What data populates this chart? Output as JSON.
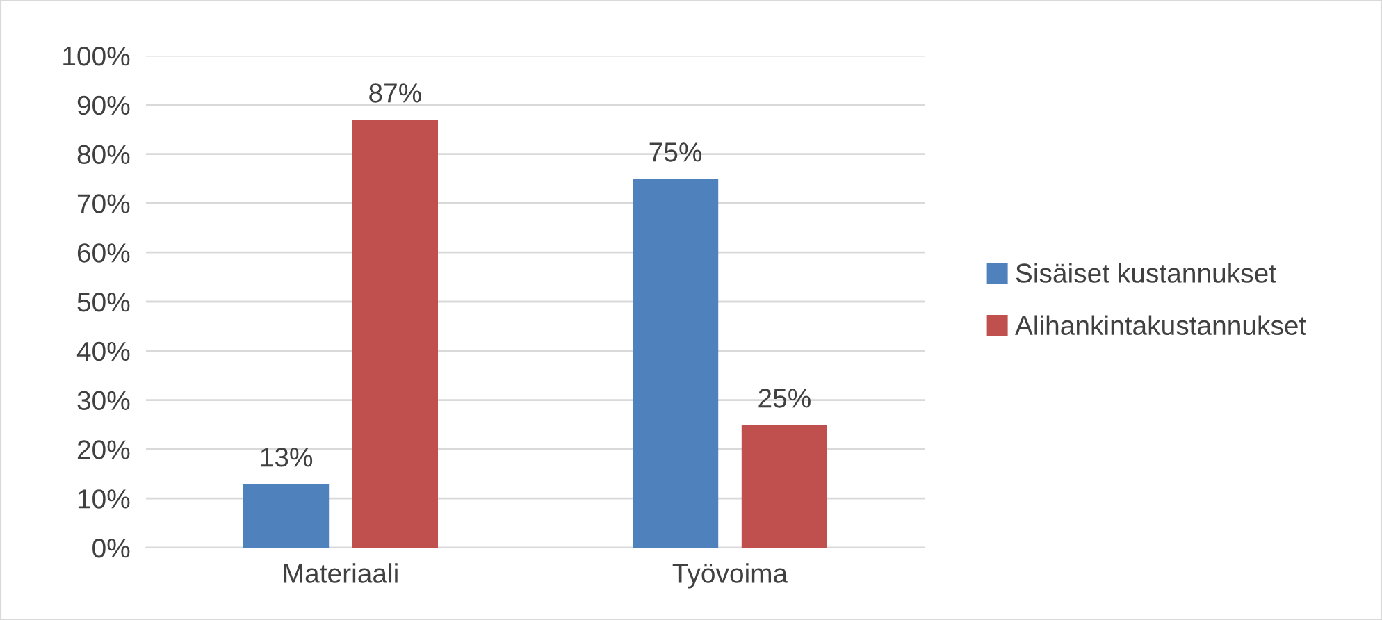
{
  "chart_data": {
    "type": "bar",
    "categories": [
      "Materiaali",
      "Työvoima"
    ],
    "series": [
      {
        "name": "Sisäiset kustannukset",
        "color": "#4f81bd",
        "values": [
          13,
          75
        ],
        "value_labels": [
          "13%",
          "75%"
        ]
      },
      {
        "name": "Alihankintakustannukset",
        "color": "#c0504d",
        "values": [
          87,
          25
        ],
        "value_labels": [
          "87%",
          "25%"
        ]
      }
    ],
    "ylim": [
      0,
      100
    ],
    "yticks": [
      {
        "value": 0,
        "label": "0%"
      },
      {
        "value": 10,
        "label": "10%"
      },
      {
        "value": 20,
        "label": "20%"
      },
      {
        "value": 30,
        "label": "30%"
      },
      {
        "value": 40,
        "label": "40%"
      },
      {
        "value": 50,
        "label": "50%"
      },
      {
        "value": 60,
        "label": "60%"
      },
      {
        "value": 70,
        "label": "70%"
      },
      {
        "value": 80,
        "label": "80%"
      },
      {
        "value": 90,
        "label": "90%"
      },
      {
        "value": 100,
        "label": "100%"
      }
    ],
    "grid": "y",
    "legend": "right"
  }
}
